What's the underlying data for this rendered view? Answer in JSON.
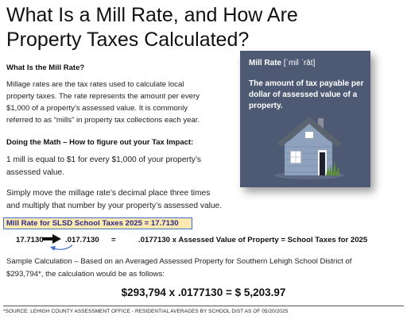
{
  "title": "What Is a Mill Rate, and How Are Property Taxes Calculated?",
  "section1": {
    "heading": "What Is the Mill Rate?",
    "lines": [
      "Millage rates are the tax rates used to calculate local",
      "property taxes. The rate represents the amount per every",
      "$1,000 of a property’s assessed value.  It is commonly",
      "referred to as “mills” in property tax collections each year."
    ]
  },
  "section2": {
    "heading": "Doing the Math – How to figure out your Tax Impact:",
    "para1_lines": [
      "1 mill is equal to $1 for every $1,000 of your property’s",
      "assessed value."
    ],
    "para2_lines": [
      "Simply move the millage rate’s decimal place three times",
      "and multiply that number by your property’s assessed value."
    ]
  },
  "card": {
    "term": "Mill Rate",
    "pronunciation": "[ˈmil ˈrāt]",
    "definition": "The amount of tax payable per dollar of assessed value of a property.",
    "bg_color": "#4e5a73",
    "house_icon": "house-icon"
  },
  "rate_line": "Mill Rate for SLSD School Taxes 2025 = 17.7130",
  "calc": {
    "rate": "17.7130",
    "decimal": ".017.7130",
    "equals": "=",
    "formula": ".0177130 x Assessed Value of Property = School Taxes for 2025"
  },
  "sample_lines": [
    "Sample Calculation – Based on an Averaged Assessed Property for Southern Lehigh School District of",
    "$293,794*, the calculation would be as follows:"
  ],
  "result": "$293,794 x .0177130 = $ 5,203.97",
  "source": "*SOURCE:  LEHIGH COUNTY ASSESSMENT OFFICE - RESIDENTIAL AVERAGES BY SCHOOL DIST AS OF 05/20/2025",
  "colors": {
    "highlight": "#fde9b0",
    "highlight_border": "#3e6fd1",
    "rate_text": "#2a2a8a",
    "small_arrow": "#3e6fd1"
  }
}
